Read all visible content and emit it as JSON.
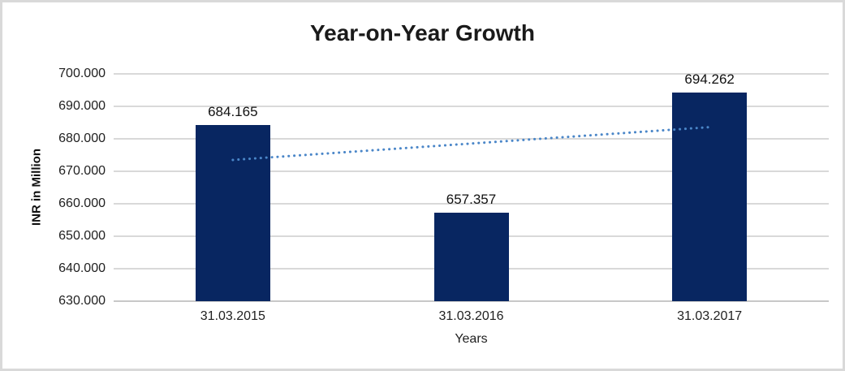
{
  "chart_data": {
    "type": "bar",
    "title": "Year-on-Year Growth",
    "xlabel": "Years",
    "ylabel": "INR in Million",
    "categories": [
      "31.03.2015",
      "31.03.2016",
      "31.03.2017"
    ],
    "values": [
      684.165,
      657.357,
      694.262
    ],
    "data_labels": [
      "684.165",
      "657.357",
      "694.262"
    ],
    "ylim": [
      630,
      700
    ],
    "ytick_step": 10,
    "ytick_labels": [
      "630.000",
      "640.000",
      "650.000",
      "660.000",
      "670.000",
      "680.000",
      "690.000",
      "700.000"
    ],
    "grid": true,
    "legend": "none",
    "trendline": {
      "type": "linear",
      "style": "dotted",
      "start_value": 673.5,
      "end_value": 683.6
    },
    "colors": {
      "bar": "#082661",
      "trendline": "#4a86c8",
      "gridline": "#d9d9d9",
      "axis_line": "#c8c8c8",
      "text": "#1a1a1a",
      "frame_border": "#d9d9d9",
      "background": "#ffffff"
    }
  }
}
